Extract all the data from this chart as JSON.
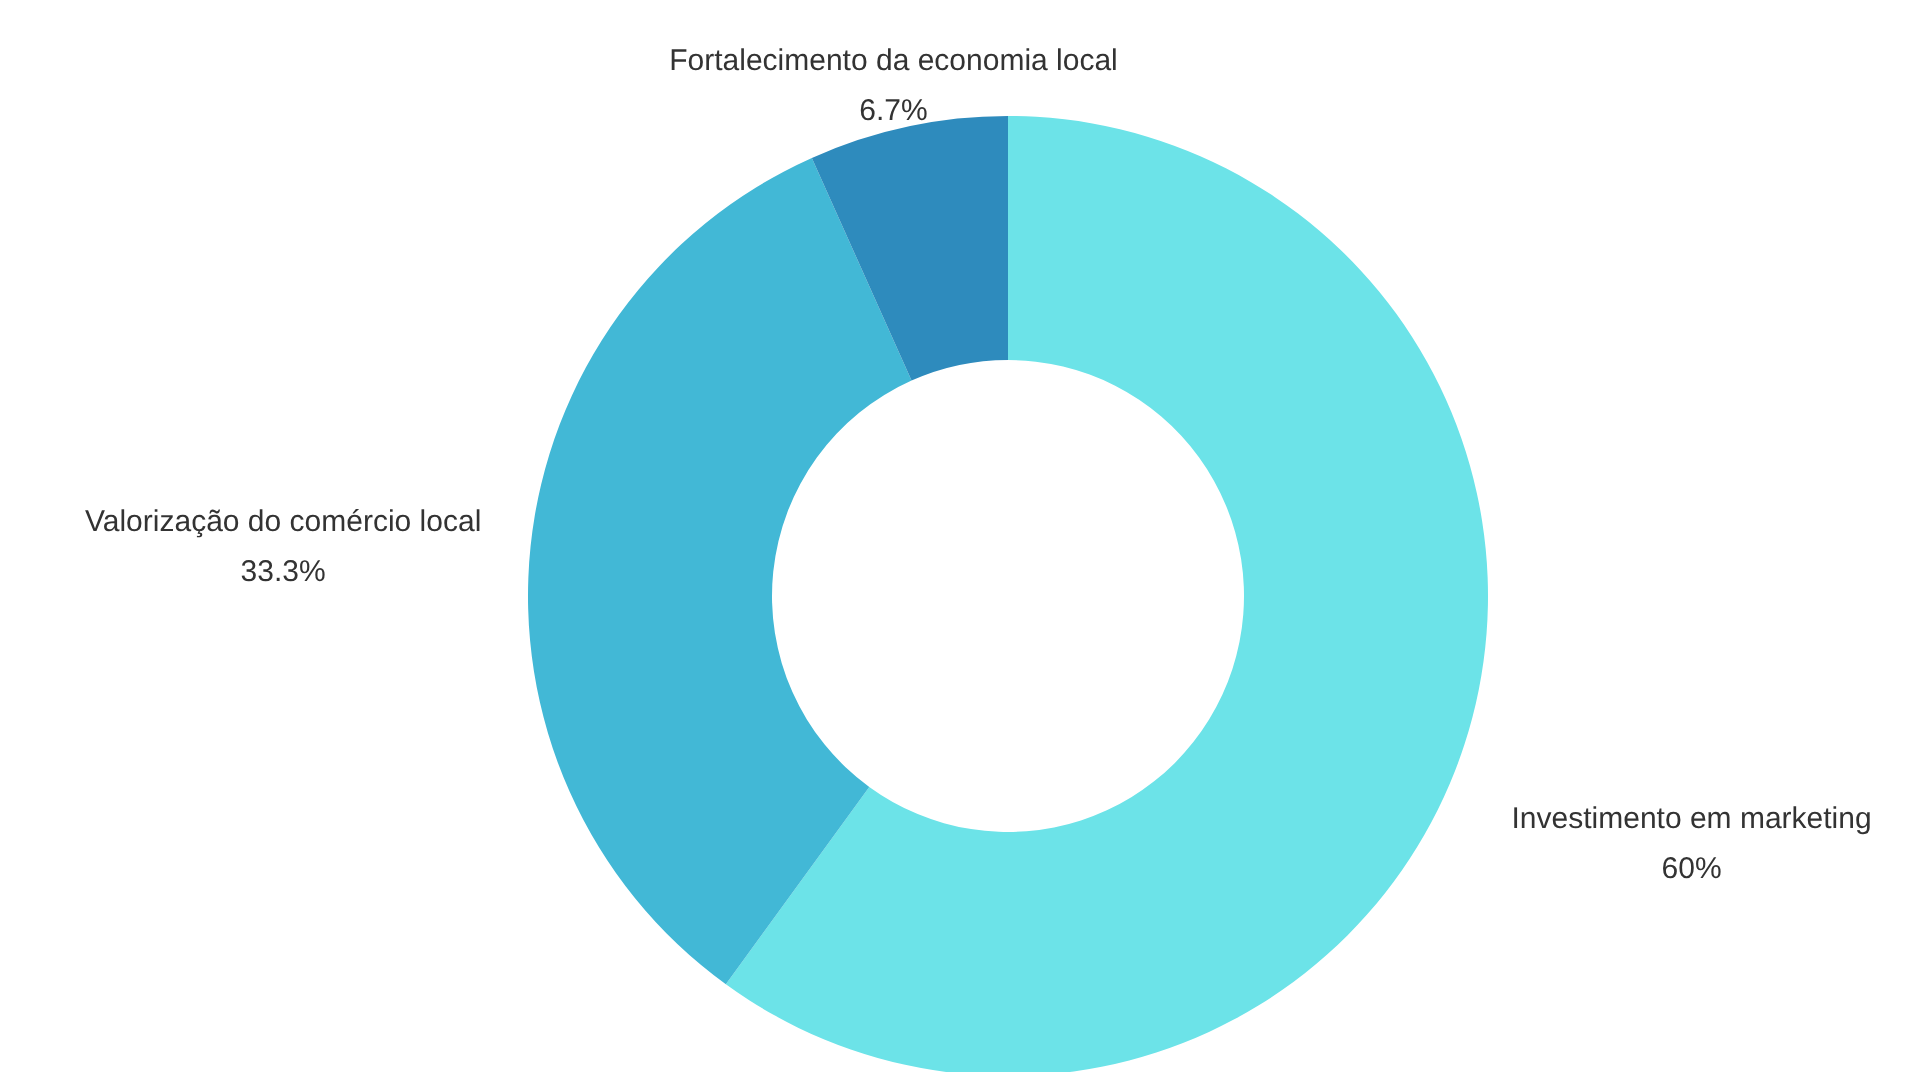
{
  "chart_data": {
    "type": "donut",
    "categories": [
      "Investimento em marketing",
      "Valorização do comércio local",
      "Fortalecimento da economia local"
    ],
    "values": [
      60,
      33.3,
      6.7
    ],
    "value_labels": [
      "60%",
      "33.3%",
      "6.7%"
    ],
    "colors": [
      "#6ce3e8",
      "#42b8d6",
      "#2e8bbd"
    ]
  }
}
